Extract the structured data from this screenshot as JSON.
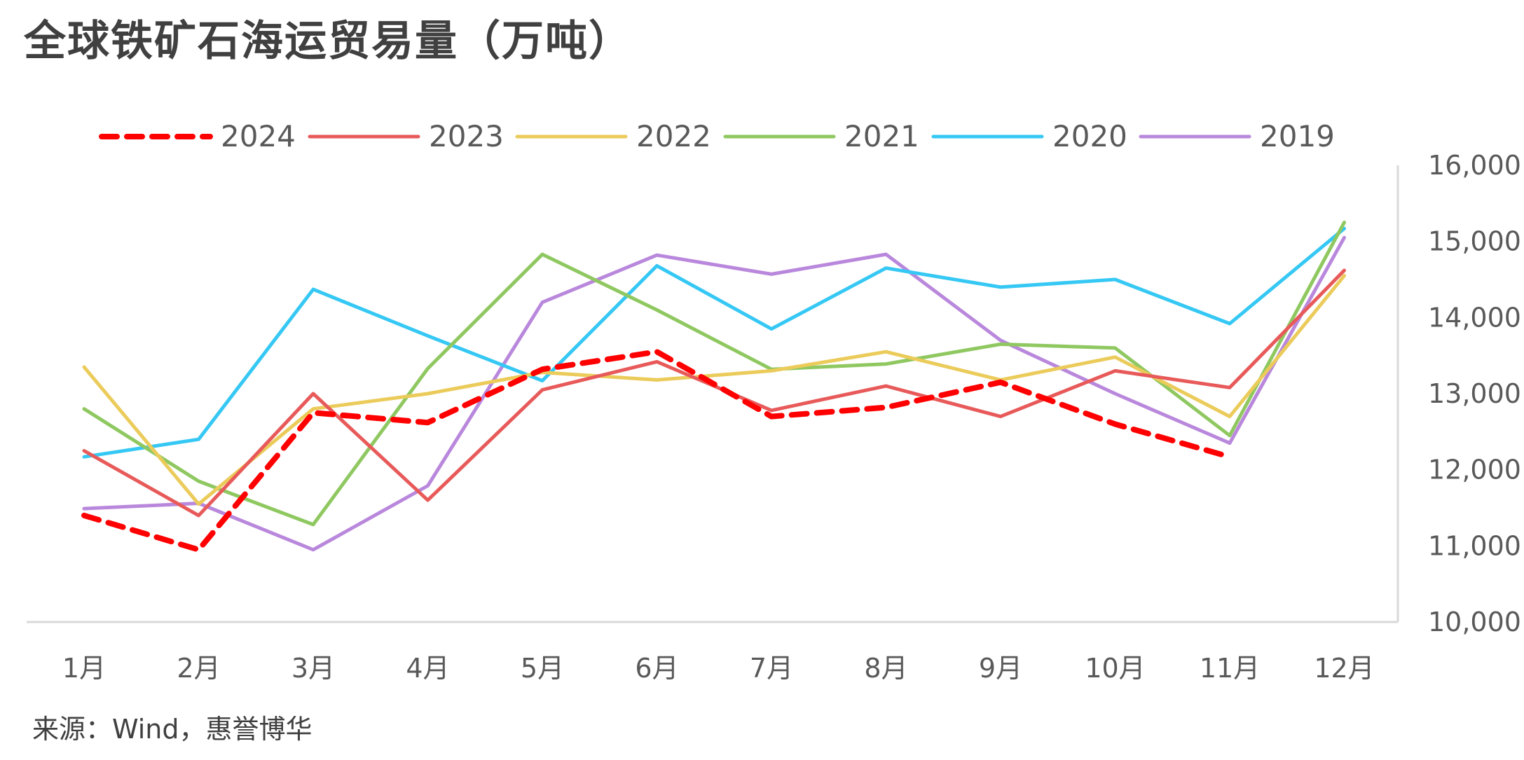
{
  "title": "全球铁矿石海运贸易量（万吨）",
  "source": "来源：Wind，惠誉博华",
  "chart_data": {
    "type": "line",
    "title": "全球铁矿石海运贸易量（万吨）",
    "xlabel": "",
    "ylabel": "",
    "categories": [
      "1月",
      "2月",
      "3月",
      "4月",
      "5月",
      "6月",
      "7月",
      "8月",
      "9月",
      "10月",
      "11月",
      "12月"
    ],
    "ylim": [
      10000,
      16000
    ],
    "yticks": [
      10000,
      11000,
      12000,
      13000,
      14000,
      15000,
      16000
    ],
    "ytick_labels": [
      "10,000",
      "11,000",
      "12,000",
      "13,000",
      "14,000",
      "15,000",
      "16,000"
    ],
    "y_axis_side": "right",
    "grid": false,
    "legend_position": "top",
    "series": [
      {
        "name": "2024",
        "color": "#FF0000",
        "dashed": true,
        "values": [
          11400,
          10950,
          12750,
          12620,
          13320,
          13550,
          12700,
          12820,
          13150,
          12600,
          12170,
          null
        ]
      },
      {
        "name": "2023",
        "color": "#E85A5A",
        "dashed": false,
        "values": [
          12250,
          11400,
          13000,
          11600,
          13050,
          13420,
          12780,
          13100,
          12700,
          13300,
          13080,
          14620
        ]
      },
      {
        "name": "2022",
        "color": "#EBCB5A",
        "dashed": false,
        "values": [
          13350,
          11550,
          12800,
          13000,
          13280,
          13180,
          13300,
          13550,
          13180,
          13480,
          12700,
          14550
        ]
      },
      {
        "name": "2021",
        "color": "#8FC860",
        "dashed": false,
        "values": [
          12800,
          11850,
          11280,
          13330,
          14830,
          14100,
          13320,
          13390,
          13650,
          13600,
          12450,
          15250
        ]
      },
      {
        "name": "2020",
        "color": "#36C8F4",
        "dashed": false,
        "values": [
          12170,
          12400,
          14370,
          13760,
          13170,
          14680,
          13850,
          14650,
          14400,
          14500,
          13920,
          15170
        ]
      },
      {
        "name": "2019",
        "color": "#B988DC",
        "dashed": false,
        "values": [
          11490,
          11560,
          10950,
          11790,
          14200,
          14820,
          14570,
          14830,
          13700,
          13000,
          12350,
          15050
        ]
      }
    ]
  }
}
